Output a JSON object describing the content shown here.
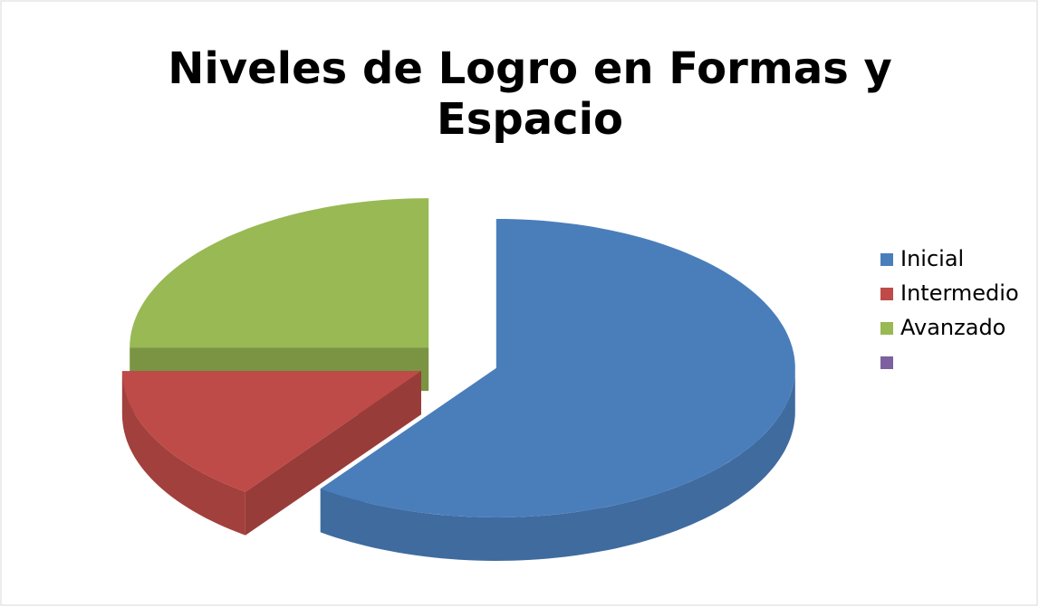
{
  "chart_data": {
    "type": "pie",
    "title": "Niveles de Logro en Formas y Espacio",
    "title_lines": [
      "Niveles de Logro en Formas y",
      "Espacio"
    ],
    "categories": [
      "Inicial",
      "Intermedio",
      "Avanzado",
      null
    ],
    "values": [
      60,
      15,
      25,
      0
    ],
    "colors": [
      "#4a7ebb",
      "#be4b48",
      "#98b954",
      "#7d60a0"
    ],
    "legend": "right"
  }
}
